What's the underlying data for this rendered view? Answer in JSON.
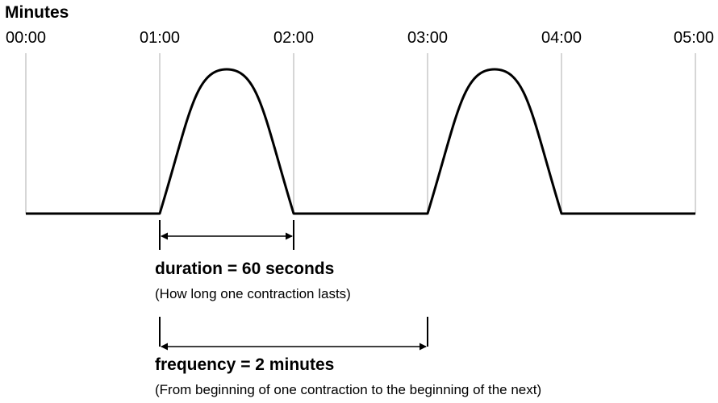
{
  "title": "Minutes",
  "time_labels": [
    "00:00",
    "01:00",
    "02:00",
    "03:00",
    "04:00",
    "05:00"
  ],
  "duration": {
    "label": "duration = 60 seconds",
    "description": "(How long one contraction lasts)",
    "start_minute": 1,
    "end_minute": 2
  },
  "frequency": {
    "label": "frequency = 2 minutes",
    "description": "(From beginning of one contraction to the beginning of the next)",
    "start_minute": 1,
    "end_minute": 3
  },
  "contractions": [
    {
      "start_minute": 1,
      "end_minute": 2
    },
    {
      "start_minute": 3,
      "end_minute": 4
    }
  ],
  "colors": {
    "line": "#000000",
    "gridline": "#c8c8c8"
  }
}
